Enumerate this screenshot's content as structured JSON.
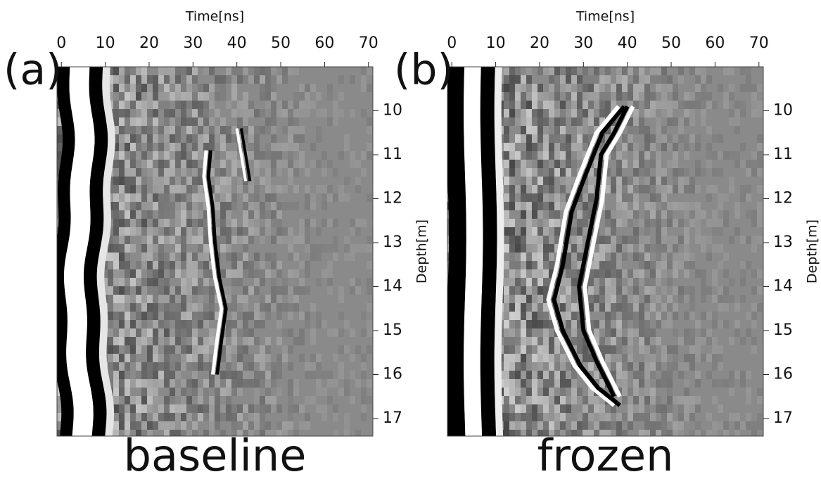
{
  "chart_data": [
    {
      "type": "radargram",
      "panel_label": "(a)",
      "caption": "baseline",
      "x_label": "Time[ns]",
      "xlim": [
        -1,
        71
      ],
      "xticks": [
        0,
        10,
        20,
        30,
        40,
        50,
        60,
        70
      ],
      "y_label": "Depth[m]",
      "ylim": [
        9,
        17.4
      ],
      "yticks": [
        10,
        11,
        12,
        13,
        14,
        15,
        16,
        17
      ]
    },
    {
      "type": "radargram",
      "panel_label": "(b)",
      "caption": "frozen",
      "x_label": "Time[ns]",
      "xlim": [
        -1,
        71
      ],
      "xticks": [
        0,
        10,
        20,
        30,
        40,
        50,
        60,
        70
      ],
      "y_label": "Depth[m]",
      "ylim": [
        9,
        17.4
      ],
      "yticks": [
        10,
        11,
        12,
        13,
        14,
        15,
        16,
        17
      ]
    }
  ]
}
